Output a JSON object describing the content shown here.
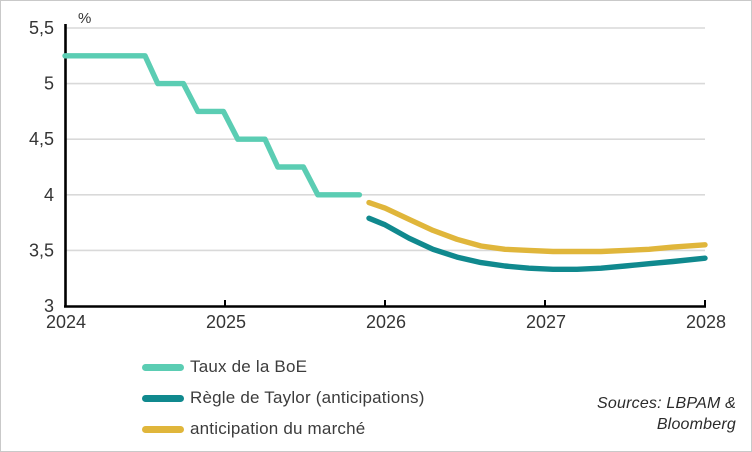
{
  "chart_data": {
    "type": "line",
    "title": "",
    "unit_label": "%",
    "xlim": [
      2024,
      2028
    ],
    "ylim": [
      3,
      5.5
    ],
    "grid": "horizontal",
    "legend_position": "bottom-left",
    "x_ticks": [
      {
        "label": "2024",
        "value": 2024
      },
      {
        "label": "2025",
        "value": 2025
      },
      {
        "label": "2026",
        "value": 2026
      },
      {
        "label": "2027",
        "value": 2027
      },
      {
        "label": "2028",
        "value": 2028
      }
    ],
    "y_ticks": [
      {
        "label": "5,5",
        "value": 5.5
      },
      {
        "label": "5",
        "value": 5
      },
      {
        "label": "4,5",
        "value": 4.5
      },
      {
        "label": "4",
        "value": 4
      },
      {
        "label": "3,5",
        "value": 3.5
      },
      {
        "label": "3",
        "value": 3
      }
    ],
    "series": [
      {
        "name": "Taux de la BoE",
        "color": "#5BCDB3",
        "points": [
          [
            2024.0,
            5.25
          ],
          [
            2024.5,
            5.25
          ],
          [
            2024.58,
            5.0
          ],
          [
            2024.74,
            5.0
          ],
          [
            2024.83,
            4.75
          ],
          [
            2024.99,
            4.75
          ],
          [
            2025.08,
            4.5
          ],
          [
            2025.25,
            4.5
          ],
          [
            2025.33,
            4.25
          ],
          [
            2025.49,
            4.25
          ],
          [
            2025.58,
            4.0
          ],
          [
            2025.84,
            4.0
          ]
        ]
      },
      {
        "name": "Règle de Taylor (anticipations)",
        "color": "#10898E",
        "points": [
          [
            2025.9,
            3.79
          ],
          [
            2026.0,
            3.73
          ],
          [
            2026.15,
            3.61
          ],
          [
            2026.3,
            3.51
          ],
          [
            2026.45,
            3.44
          ],
          [
            2026.6,
            3.39
          ],
          [
            2026.75,
            3.36
          ],
          [
            2026.9,
            3.34
          ],
          [
            2027.05,
            3.33
          ],
          [
            2027.2,
            3.33
          ],
          [
            2027.35,
            3.34
          ],
          [
            2027.5,
            3.36
          ],
          [
            2027.65,
            3.38
          ],
          [
            2027.8,
            3.4
          ],
          [
            2028.0,
            3.43
          ]
        ]
      },
      {
        "name": "anticipation du marché",
        "color": "#E0B63B",
        "points": [
          [
            2025.9,
            3.93
          ],
          [
            2026.0,
            3.88
          ],
          [
            2026.15,
            3.78
          ],
          [
            2026.3,
            3.68
          ],
          [
            2026.45,
            3.6
          ],
          [
            2026.6,
            3.54
          ],
          [
            2026.75,
            3.51
          ],
          [
            2026.9,
            3.5
          ],
          [
            2027.05,
            3.49
          ],
          [
            2027.2,
            3.49
          ],
          [
            2027.35,
            3.49
          ],
          [
            2027.5,
            3.5
          ],
          [
            2027.65,
            3.51
          ],
          [
            2027.8,
            3.53
          ],
          [
            2028.0,
            3.55
          ]
        ]
      }
    ]
  },
  "source_note": {
    "line1": "Sources: LBPAM &",
    "line2": "Bloomberg"
  }
}
